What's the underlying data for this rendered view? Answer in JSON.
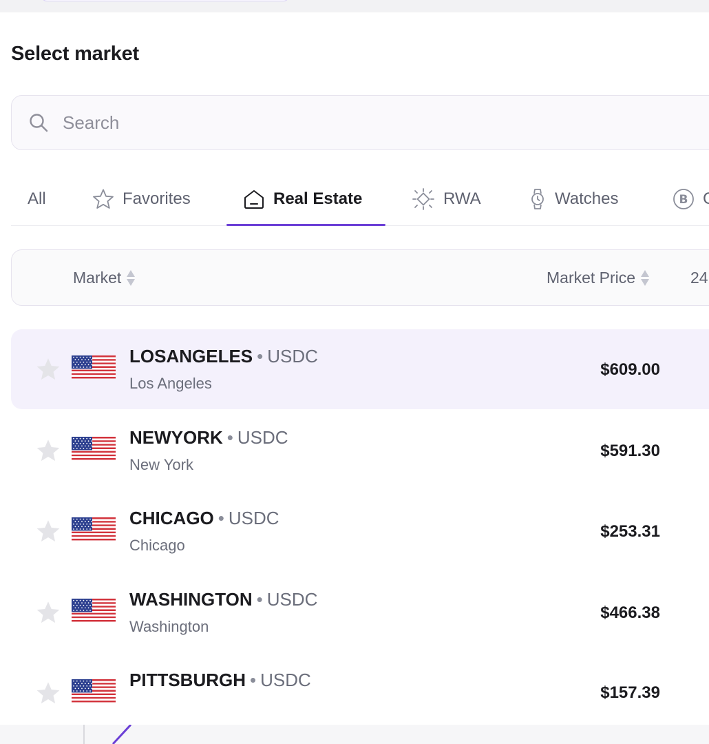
{
  "title": "Select market",
  "search": {
    "placeholder": "Search",
    "value": ""
  },
  "tabs": [
    {
      "label": "All",
      "icon": "none",
      "active": false
    },
    {
      "label": "Favorites",
      "icon": "star-icon",
      "active": false
    },
    {
      "label": "Real Estate",
      "icon": "house-icon",
      "active": true
    },
    {
      "label": "RWA",
      "icon": "sparkle-icon",
      "active": false
    },
    {
      "label": "Watches",
      "icon": "watch-icon",
      "active": false
    },
    {
      "label": "C",
      "icon": "bitcoin-icon",
      "active": false
    }
  ],
  "table_header": {
    "market": "Market",
    "market_price": "Market Price",
    "change": "24"
  },
  "markets": [
    {
      "symbol": "LOSANGELES",
      "quote": "USDC",
      "name": "Los Angeles",
      "price": "$609.00",
      "highlighted": true
    },
    {
      "symbol": "NEWYORK",
      "quote": "USDC",
      "name": "New York",
      "price": "$591.30",
      "highlighted": false
    },
    {
      "symbol": "CHICAGO",
      "quote": "USDC",
      "name": "Chicago",
      "price": "$253.31",
      "highlighted": false
    },
    {
      "symbol": "WASHINGTON",
      "quote": "USDC",
      "name": "Washington",
      "price": "$466.38",
      "highlighted": false
    },
    {
      "symbol": "PITTSBURGH",
      "quote": "USDC",
      "name": "",
      "price": "$157.39",
      "highlighted": false
    }
  ],
  "colors": {
    "accent": "#6b3fd6",
    "highlight_row": "#f4f1fc",
    "muted_text": "#6b6e7b"
  }
}
